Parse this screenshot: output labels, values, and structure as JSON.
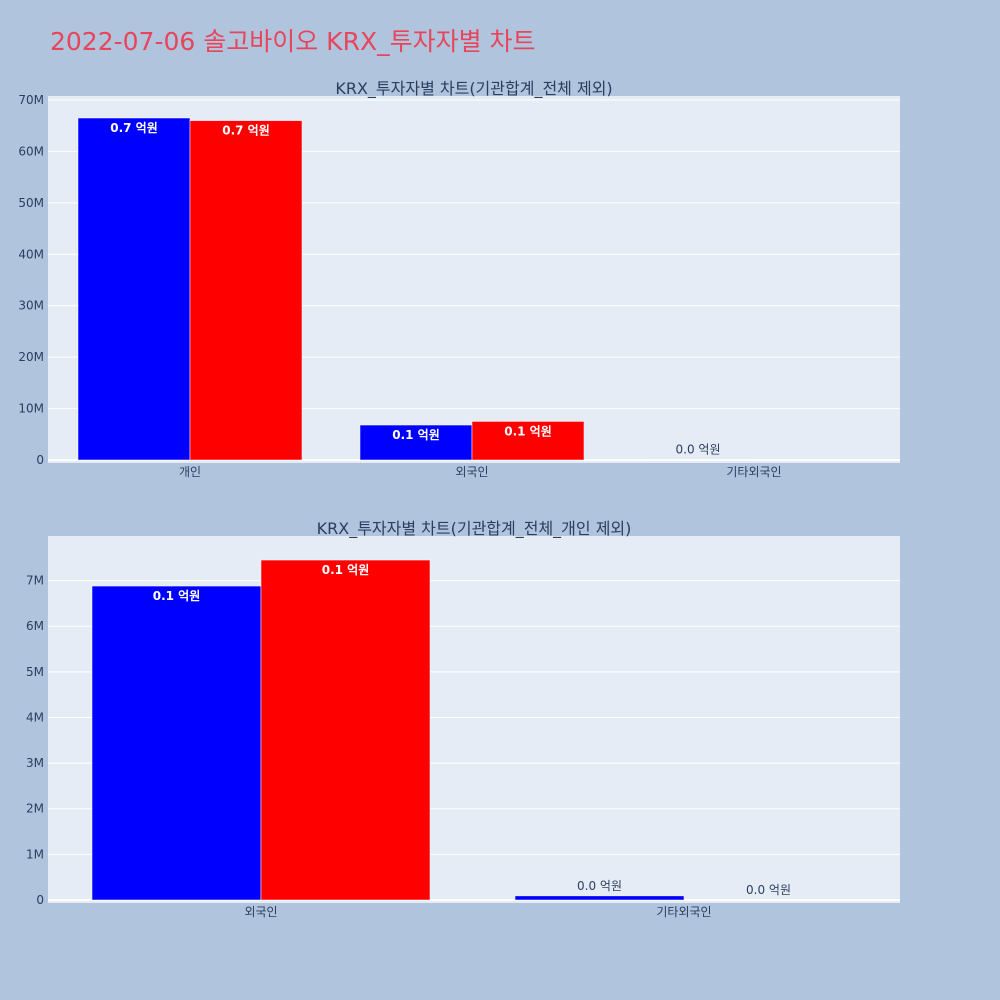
{
  "page": {
    "title": "2022-07-06 솔고바이오 KRX_투자자별 차트",
    "background": "#b0c4de",
    "title_color": "#e8455a",
    "plot_background": "#e5ecf6"
  },
  "chart_data": [
    {
      "type": "bar",
      "title": "KRX_투자자별 차트(기관합계_전체 제외)",
      "xlabel": "",
      "ylabel": "",
      "categories": [
        "개인",
        "외국인",
        "기타외국인"
      ],
      "ylim": [
        0,
        70000000
      ],
      "y_ticks": [
        0,
        10000000,
        20000000,
        30000000,
        40000000,
        50000000,
        60000000,
        70000000
      ],
      "y_tick_labels": [
        "0",
        "10M",
        "20M",
        "30M",
        "40M",
        "50M",
        "60M",
        "70M"
      ],
      "grid": true,
      "series": [
        {
          "color": "#0000ff",
          "values": [
            66500000,
            6800000,
            100000
          ],
          "labels": [
            "0.7 억원",
            "0.1 억원",
            "0.0 억원"
          ]
        },
        {
          "color": "#ff0000",
          "values": [
            66000000,
            7500000,
            null
          ],
          "labels": [
            "0.7 억원",
            "0.1 억원",
            ""
          ]
        }
      ]
    },
    {
      "type": "bar",
      "title": "KRX_투자자별 차트(기관합계_전체_개인 제외)",
      "xlabel": "",
      "ylabel": "",
      "categories": [
        "외국인",
        "기타외국인"
      ],
      "ylim": [
        0,
        7900000
      ],
      "y_ticks": [
        0,
        1000000,
        2000000,
        3000000,
        4000000,
        5000000,
        6000000,
        7000000
      ],
      "y_tick_labels": [
        "0",
        "1M",
        "2M",
        "3M",
        "4M",
        "5M",
        "6M",
        "7M"
      ],
      "grid": true,
      "series": [
        {
          "color": "#0000ff",
          "values": [
            6880000,
            90000
          ],
          "labels": [
            "0.1 억원",
            "0.0 억원"
          ]
        },
        {
          "color": "#ff0000",
          "values": [
            7450000,
            0
          ],
          "labels": [
            "0.1 억원",
            "0.0 억원"
          ]
        }
      ]
    }
  ]
}
